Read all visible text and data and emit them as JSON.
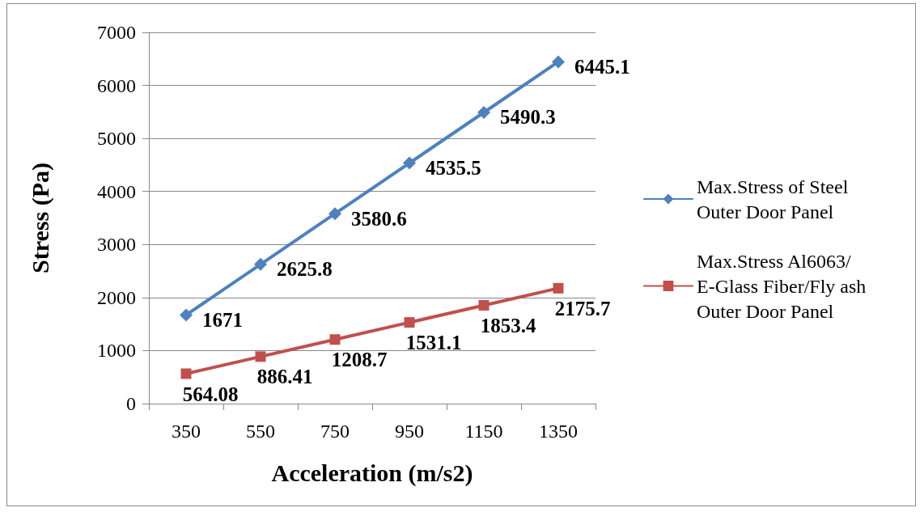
{
  "chart_data": {
    "type": "line",
    "xlabel": "Acceleration (m/s2)",
    "ylabel": "Stress (Pa)",
    "categories": [
      "350",
      "550",
      "750",
      "950",
      "1150",
      "1350"
    ],
    "series": [
      {
        "name": "Max.Stress of Steel Outer Door Panel",
        "color": "#4f81bd",
        "marker": "diamond",
        "values": [
          1671,
          2625.8,
          3580.6,
          4535.5,
          5490.3,
          6445.1
        ]
      },
      {
        "name": "Max.Stress Al6063/E-Glass Fiber/Fly ash Outer Door Panel",
        "color": "#c0504d",
        "marker": "square",
        "values": [
          564.08,
          886.41,
          1208.7,
          1531.1,
          1853.4,
          2175.7
        ]
      }
    ],
    "ylim": [
      0,
      7000
    ],
    "yticks": [
      0,
      1000,
      2000,
      3000,
      4000,
      5000,
      6000,
      7000
    ],
    "grid": "y",
    "legend": "right",
    "data_labels": true,
    "line_style": "solid"
  }
}
